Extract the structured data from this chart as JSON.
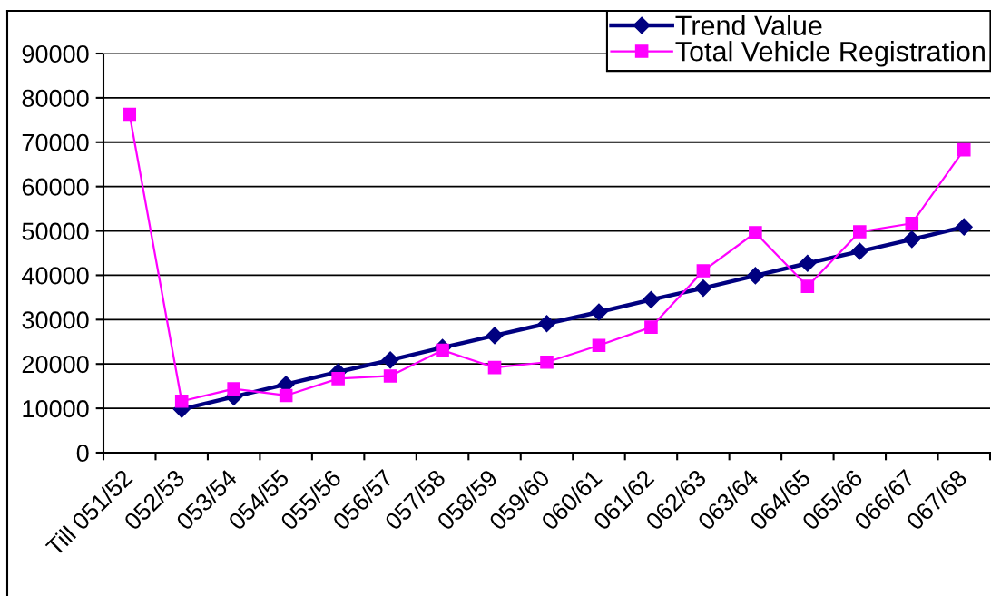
{
  "chart_data": {
    "type": "line",
    "categories": [
      "Till 051/52",
      "052/53",
      "053/54",
      "054/55",
      "055/56",
      "056/57",
      "057/58",
      "058/59",
      "059/60",
      "060/61",
      "061/62",
      "062/63",
      "063/64",
      "064/65",
      "065/66",
      "066/67",
      "067/68"
    ],
    "series": [
      {
        "name": "Trend Value",
        "color": "#000080",
        "marker": "diamond",
        "values": [
          null,
          9800,
          12600,
          15400,
          18200,
          20900,
          23700,
          26400,
          29100,
          31700,
          34500,
          37100,
          39900,
          42700,
          45400,
          48100,
          50900
        ]
      },
      {
        "name": "Total Vehicle Registration",
        "color": "#ff00ff",
        "marker": "square",
        "values": [
          76300,
          11600,
          14400,
          12900,
          16700,
          17300,
          23100,
          19200,
          20400,
          24200,
          28300,
          41000,
          49600,
          37500,
          49800,
          51700,
          68300
        ]
      }
    ],
    "ylim": [
      0,
      90000
    ],
    "yticks": [
      0,
      10000,
      20000,
      30000,
      40000,
      50000,
      60000,
      70000,
      80000,
      90000
    ],
    "grid": "y",
    "legend": "top right",
    "line_style": "solid"
  }
}
